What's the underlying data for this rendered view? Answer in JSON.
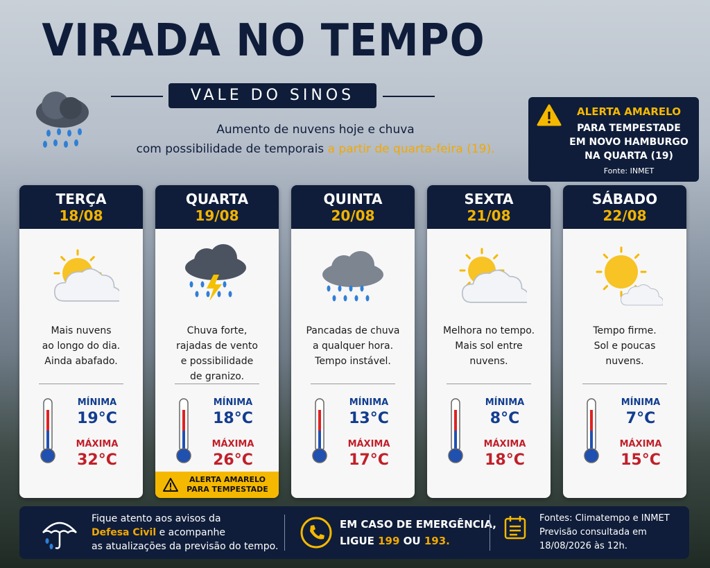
{
  "header": {
    "title": "VIRADA NO TEMPO",
    "region": "VALE DO SINOS",
    "subtitle_line1": "Aumento de nuvens hoje e chuva",
    "subtitle_line2": "com possibilidade de temporais",
    "subtitle_highlight": "a partir de quarta-feira (19)."
  },
  "alert": {
    "title": "ALERTA AMARELO",
    "lines": [
      "PARA TEMPESTADE",
      "EM NOVO HAMBURGO",
      "NA QUARTA (19)"
    ],
    "source": "Fonte: INMET"
  },
  "days": [
    {
      "name": "TERÇA",
      "date": "18/08",
      "description": [
        "Mais nuvens",
        "ao longo do dia.",
        "Ainda abafado."
      ],
      "min_label": "MÍNIMA",
      "min": "19°C",
      "max_label": "MÁXIMA",
      "max": "32°C"
    },
    {
      "name": "QUARTA",
      "date": "19/08",
      "description": [
        "Chuva forte,",
        "rajadas de vento",
        "e possibilidade",
        "de granizo."
      ],
      "min_label": "MÍNIMA",
      "min": "18°C",
      "max_label": "MÁXIMA",
      "max": "26°C",
      "alert": [
        "ALERTA AMARELO",
        "PARA TEMPESTADE"
      ]
    },
    {
      "name": "QUINTA",
      "date": "20/08",
      "description": [
        "Pancadas de chuva",
        "a qualquer hora.",
        "Tempo instável."
      ],
      "min_label": "MÍNIMA",
      "min": "13°C",
      "max_label": "MÁXIMA",
      "max": "17°C"
    },
    {
      "name": "SEXTA",
      "date": "21/08",
      "description": [
        "Melhora no tempo.",
        "Mais sol entre",
        "nuvens."
      ],
      "min_label": "MÍNIMA",
      "min": "8°C",
      "max_label": "MÁXIMA",
      "max": "18°C"
    },
    {
      "name": "SÁBADO",
      "date": "22/08",
      "description": [
        "Tempo firme.",
        "Sol e poucas",
        "nuvens."
      ],
      "min_label": "MÍNIMA",
      "min": "7°C",
      "max_label": "MÁXIMA",
      "max": "15°C"
    }
  ],
  "footer": {
    "civil": {
      "line1": "Fique atento aos avisos da",
      "highlight": "Defesa Civil",
      "line2_rest": "e acompanhe",
      "line3": "as atualizações da previsão do tempo."
    },
    "emergency": {
      "line1": "EM CASO DE EMERGÊNCIA,",
      "prefix": "LIGUE",
      "number1": "199",
      "conjunction": "OU",
      "number2": "193."
    },
    "sources": {
      "lines": [
        "Fontes: Climatempo e INMET",
        "Previsão consultada em",
        "18/08/2026 às 12h."
      ]
    }
  }
}
